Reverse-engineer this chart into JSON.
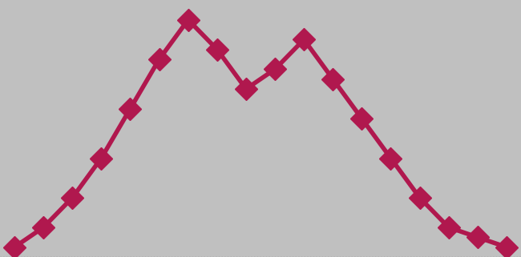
{
  "x_values": [
    0,
    1,
    2,
    3,
    4,
    5,
    6,
    7,
    8,
    9,
    10,
    11,
    12,
    13,
    14,
    15,
    16,
    17
  ],
  "y_values": [
    1,
    3,
    6,
    10,
    15,
    20,
    24,
    21,
    17,
    19,
    22,
    18,
    14,
    10,
    6,
    3,
    2,
    1
  ],
  "line_color": "#b0184e",
  "marker_color": "#b0184e",
  "marker_style": "D",
  "marker_size": 14,
  "line_width": 4,
  "background_color": "#c0c0c0",
  "fig_background_color": "#000000",
  "ylim": [
    0,
    26
  ],
  "xlim": [
    -0.5,
    17.5
  ]
}
